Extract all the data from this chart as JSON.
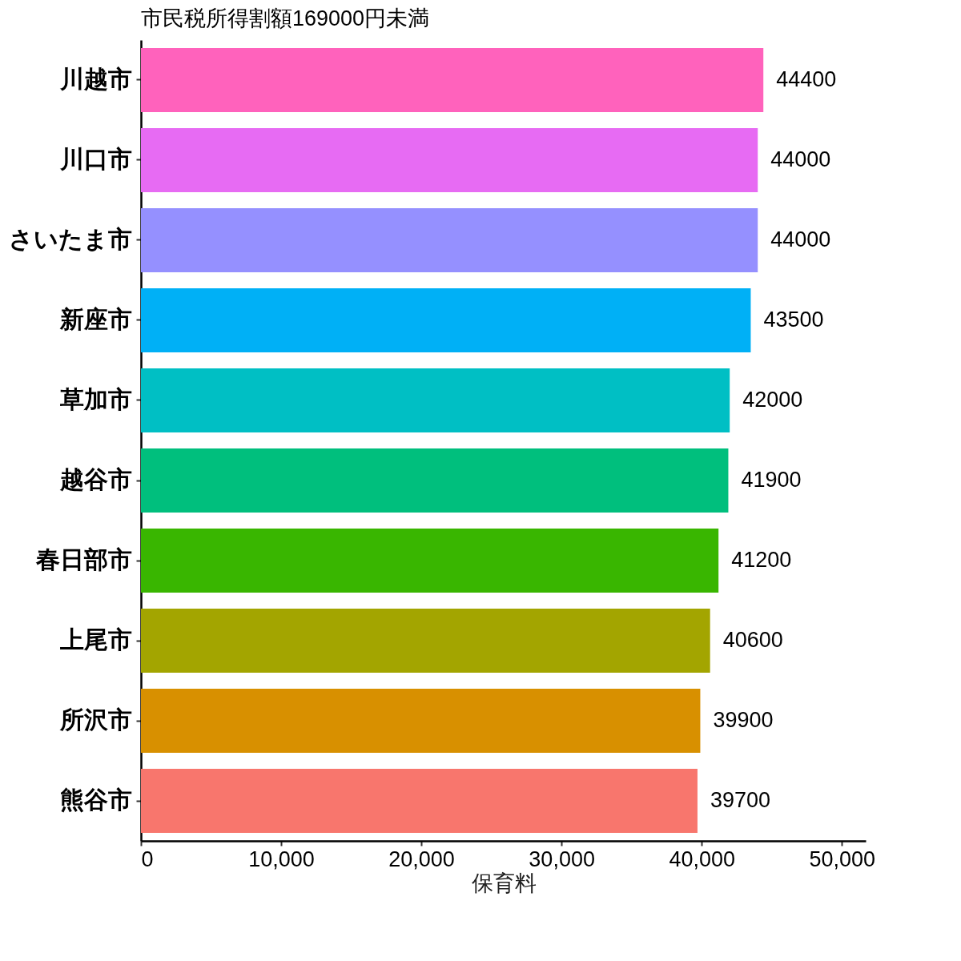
{
  "chart_data": {
    "type": "bar",
    "orientation": "horizontal",
    "title": "市民税所得割額169000円未満",
    "xlabel": "保育料",
    "categories": [
      "川越市",
      "川口市",
      "さいたま市",
      "新座市",
      "草加市",
      "越谷市",
      "春日部市",
      "上尾市",
      "所沢市",
      "熊谷市"
    ],
    "values": [
      44400,
      44000,
      44000,
      43500,
      42000,
      41900,
      41200,
      40600,
      39900,
      39700
    ],
    "colors": [
      "#ff62bc",
      "#e76bf3",
      "#9590ff",
      "#00b0f6",
      "#00bfc4",
      "#00bf7d",
      "#39b600",
      "#a3a500",
      "#d89000",
      "#f8766d"
    ],
    "xlim": [
      0,
      51700
    ],
    "xticks": [
      0,
      {
        "value": 10000,
        "label": "10,000"
      },
      {
        "value": 20000,
        "label": "20,000"
      },
      {
        "value": 30000,
        "label": "30,000"
      },
      {
        "value": 40000,
        "label": "40,000"
      },
      {
        "value": 50000,
        "label": "50,000"
      }
    ],
    "data_labels": true
  }
}
